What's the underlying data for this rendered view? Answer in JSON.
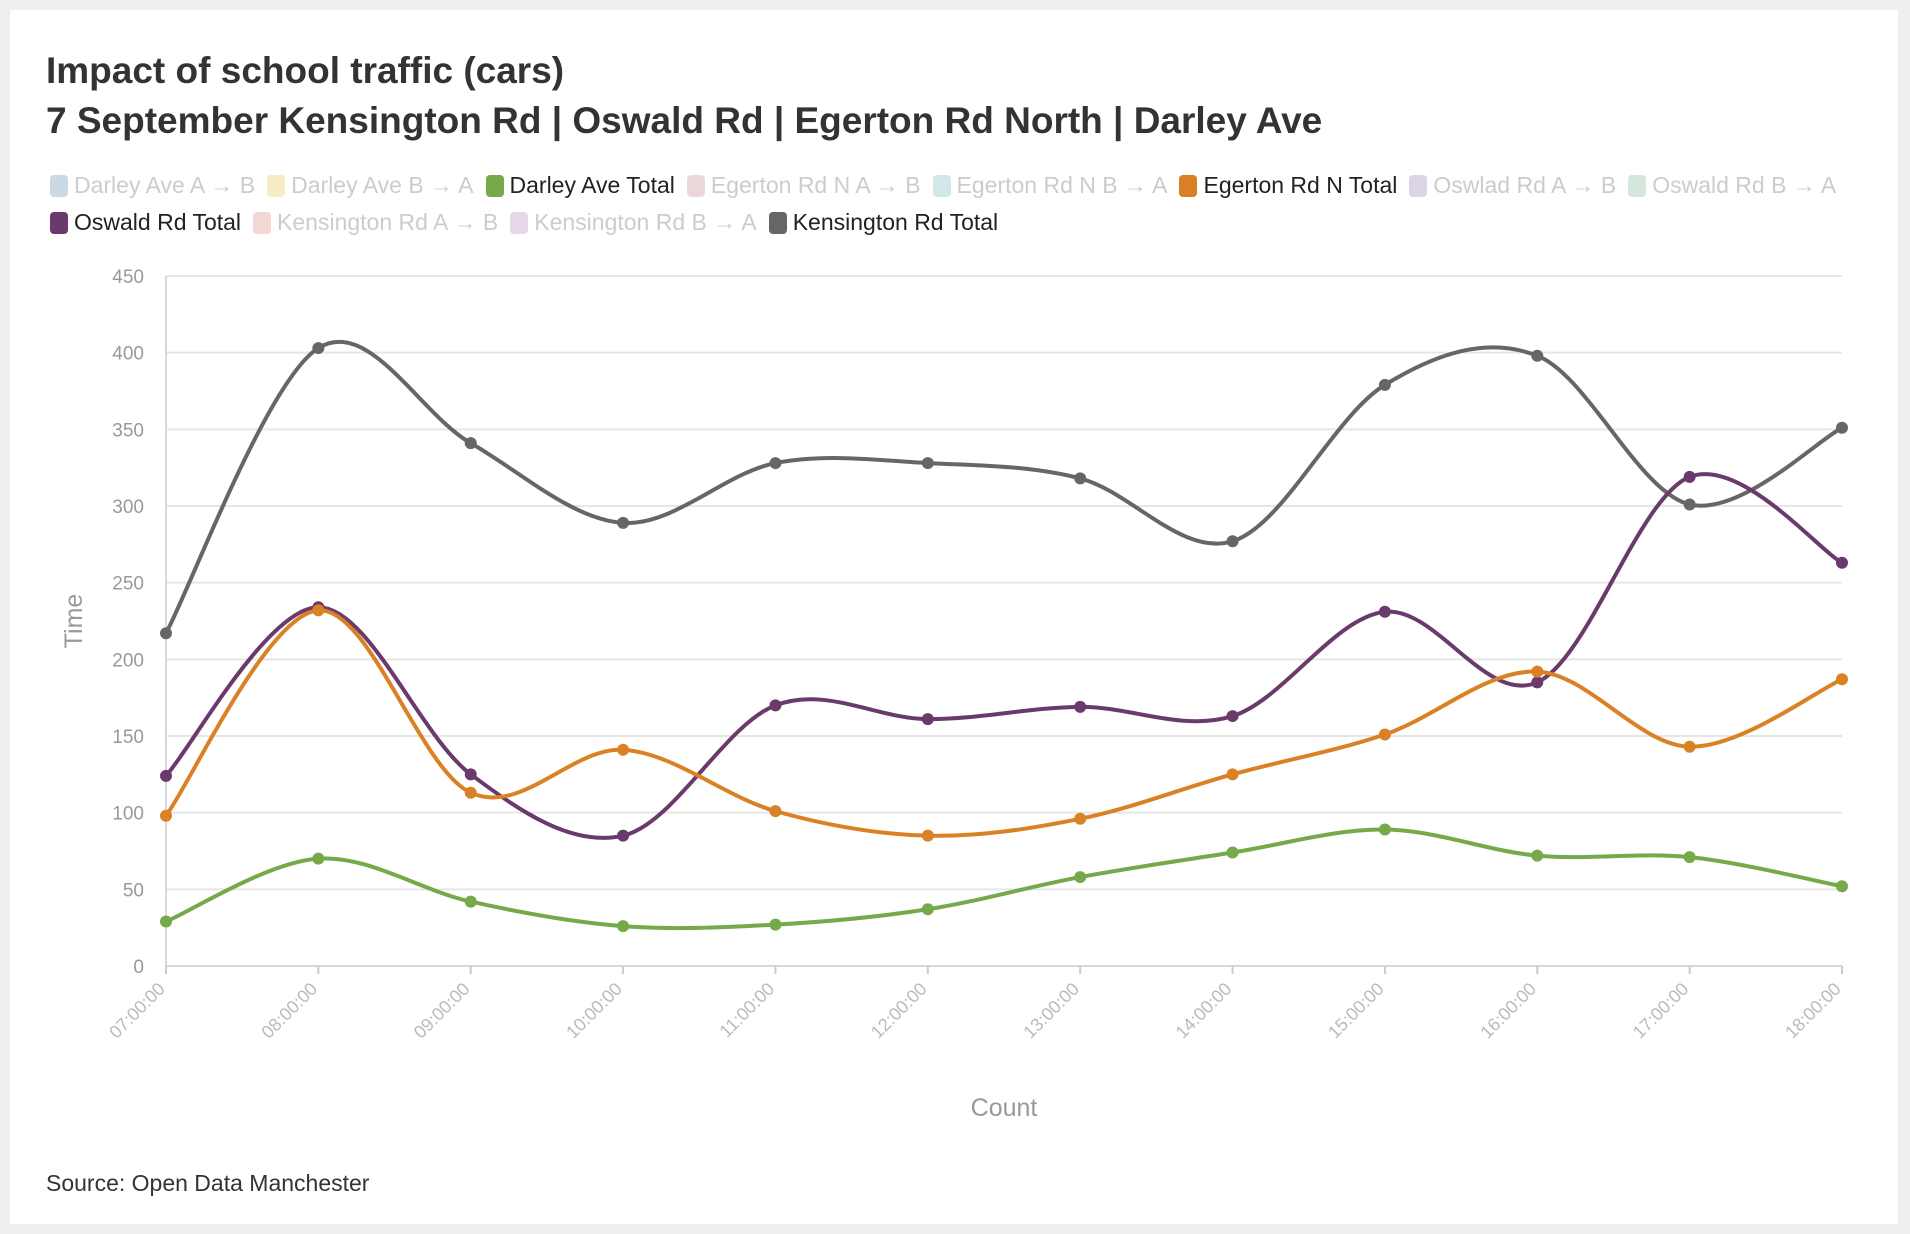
{
  "title": "Impact of school traffic (cars)",
  "subtitle": "7 September Kensington Rd | Oswald Rd | Egerton Rd North | Darley Ave",
  "source": "Source: Open Data Manchester",
  "legend": [
    {
      "label": "Darley Ave A → B",
      "color": "#c9d9e6",
      "active": false
    },
    {
      "label": "Darley Ave B → A",
      "color": "#f7ecc4",
      "active": false
    },
    {
      "label": "Darley Ave Total",
      "color": "#76a94a",
      "active": true
    },
    {
      "label": "Egerton Rd N A → B",
      "color": "#ecd7db",
      "active": false
    },
    {
      "label": "Egerton Rd N B → A",
      "color": "#d2e7e7",
      "active": false
    },
    {
      "label": "Egerton Rd N Total",
      "color": "#d98124",
      "active": true
    },
    {
      "label": "Oswlad Rd A → B",
      "color": "#ddd4e6",
      "active": false
    },
    {
      "label": "Oswald Rd B → A",
      "color": "#d3e7dc",
      "active": false
    },
    {
      "label": "Oswald Rd Total",
      "color": "#6a3a6c",
      "active": true
    },
    {
      "label": "Kensington Rd A → B",
      "color": "#f3d8d5",
      "active": false
    },
    {
      "label": "Kensington Rd B → A",
      "color": "#e6d6e9",
      "active": false
    },
    {
      "label": "Kensington Rd Total",
      "color": "#666666",
      "active": true
    }
  ],
  "chart_data": {
    "type": "line",
    "title": "Impact of school traffic (cars)",
    "subtitle": "7 September Kensington Rd | Oswald Rd | Egerton Rd North | Darley Ave",
    "xlabel": "Count",
    "ylabel": "Time",
    "ylim": [
      0,
      450
    ],
    "yticks": [
      0,
      50,
      100,
      150,
      200,
      250,
      300,
      350,
      400,
      450
    ],
    "grid": true,
    "legend_position": "top",
    "categories": [
      "07:00:00",
      "08:00:00",
      "09:00:00",
      "10:00:00",
      "11:00:00",
      "12:00:00",
      "13:00:00",
      "14:00:00",
      "15:00:00",
      "16:00:00",
      "17:00:00",
      "18:00:00"
    ],
    "series": [
      {
        "name": "Kensington Rd Total",
        "color": "#666666",
        "values": [
          217,
          403,
          341,
          289,
          328,
          328,
          318,
          277,
          379,
          398,
          301,
          351
        ]
      },
      {
        "name": "Oswald Rd Total",
        "color": "#6a3a6c",
        "values": [
          124,
          234,
          125,
          85,
          170,
          161,
          169,
          163,
          231,
          185,
          319,
          263
        ]
      },
      {
        "name": "Egerton Rd N Total",
        "color": "#d98124",
        "values": [
          98,
          232,
          113,
          141,
          101,
          85,
          96,
          125,
          151,
          192,
          143,
          187
        ]
      },
      {
        "name": "Darley Ave Total",
        "color": "#76a94a",
        "values": [
          29,
          70,
          42,
          26,
          27,
          37,
          58,
          74,
          89,
          72,
          71,
          52
        ]
      }
    ]
  }
}
